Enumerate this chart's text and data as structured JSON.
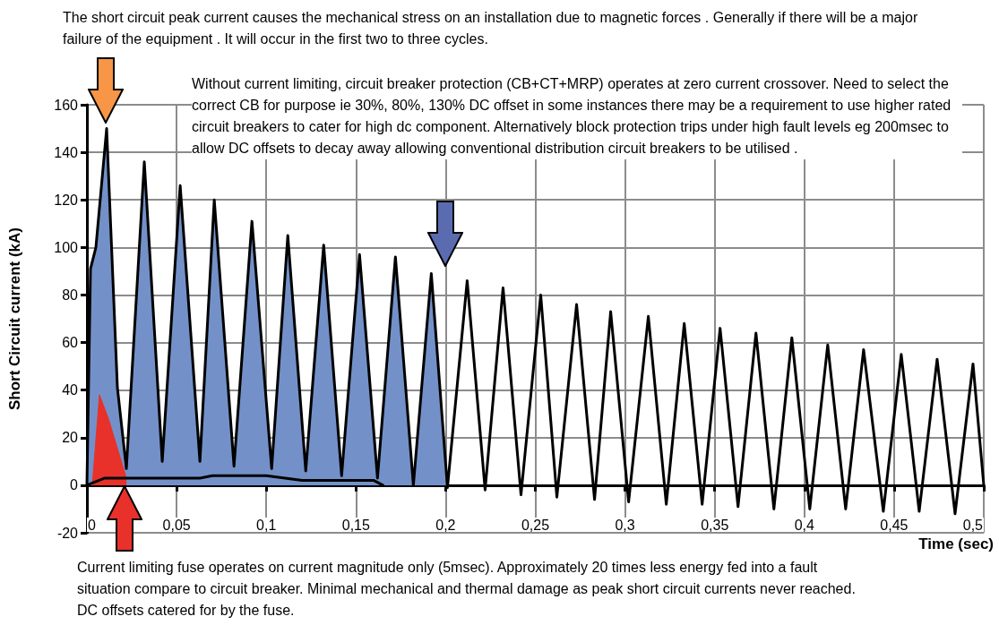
{
  "chart_data": {
    "type": "line",
    "xlabel": "Time (sec)",
    "ylabel": "Short Circuit current (kA)",
    "annotations": [
      "The short circuit peak current causes the mechanical stress on an installation due to magnetic forces . Generally if there will be a major failure of the equipment . It will occur in the first two to three cycles.",
      "Without current limiting, circuit breaker protection (CB+CT+MRP) operates at zero current crossover. Need to select the correct CB for purpose ie 30%, 80%, 130% DC offset in some instances there may be a requirement to use higher rated circuit breakers to cater for high dc component. Alternatively block protection trips under high fault levels eg  200msec to allow DC offsets to decay away allowing conventional distribution circuit breakers to be utilised .",
      "Current limiting fuse operates on current magnitude only  (5msec). Approximately 20 times less energy fed into a fault situation compare to circuit breaker. Minimal mechanical and thermal damage as peak short circuit currents never reached. DC offsets catered for by the fuse."
    ],
    "series": [
      {
        "type": "area",
        "color": "#7391c8",
        "x": [
          0,
          0.002,
          0.005,
          0.011,
          0.017,
          0.022,
          0.032,
          0.042,
          0.052,
          0.063,
          0.071,
          0.082,
          0.092,
          0.103,
          0.112,
          0.122,
          0.132,
          0.142,
          0.152,
          0.162,
          0.172,
          0.182,
          0.192,
          0.2
        ],
        "values": [
          0,
          91,
          100,
          150,
          41,
          7,
          136,
          10,
          126,
          10,
          120,
          8,
          111,
          7,
          105,
          6,
          101,
          4,
          97,
          3,
          96,
          0,
          89,
          0
        ]
      },
      {
        "type": "area",
        "color": "#e8312a",
        "x": [
          0.003,
          0.007,
          0.012,
          0.022
        ],
        "values": [
          0,
          38,
          28,
          3
        ]
      },
      {
        "color": "#000000",
        "x": [
          0,
          0.01,
          0.063,
          0.07,
          0.1,
          0.12,
          0.16,
          0.165
        ],
        "values": [
          0,
          3,
          3,
          4,
          4,
          2,
          2,
          0
        ]
      },
      {
        "color": "#000000",
        "x": [
          0,
          0.002,
          0.005,
          0.011,
          0.017,
          0.022,
          0.032,
          0.042,
          0.052,
          0.063,
          0.071,
          0.082,
          0.092,
          0.103,
          0.112,
          0.122,
          0.132,
          0.142,
          0.152,
          0.162,
          0.172,
          0.182,
          0.192,
          0.201,
          0.212,
          0.222,
          0.232,
          0.242,
          0.253,
          0.262,
          0.273,
          0.283,
          0.292,
          0.302,
          0.313,
          0.323,
          0.333,
          0.343,
          0.353,
          0.363,
          0.373,
          0.383,
          0.393,
          0.403,
          0.413,
          0.423,
          0.433,
          0.444,
          0.454,
          0.464,
          0.474,
          0.484,
          0.494,
          0.5
        ],
        "values": [
          0,
          91,
          100,
          150,
          41,
          7,
          136,
          10,
          126,
          10,
          120,
          8,
          111,
          7,
          105,
          6,
          101,
          4,
          97,
          3,
          96,
          0,
          89,
          -1,
          86,
          -2,
          83,
          -4,
          80,
          -5,
          76,
          -6,
          73,
          -7,
          71,
          -8,
          68,
          -8,
          66,
          -9,
          64,
          -10,
          62,
          -10,
          59,
          -10,
          57,
          -11,
          55,
          -11,
          53,
          -12,
          51,
          0
        ]
      }
    ],
    "xlim": [
      0,
      0.5
    ],
    "xticks": [
      {
        "value": 0,
        "label": "0"
      },
      {
        "value": 0.05,
        "label": "0,05"
      },
      {
        "value": 0.1,
        "label": "0,1"
      },
      {
        "value": 0.15,
        "label": "0,15"
      },
      {
        "value": 0.2,
        "label": "0,2"
      },
      {
        "value": 0.25,
        "label": "0,25"
      },
      {
        "value": 0.3,
        "label": "0,3"
      },
      {
        "value": 0.35,
        "label": "0,35"
      },
      {
        "value": 0.4,
        "label": "0,4"
      },
      {
        "value": 0.45,
        "label": "0,45"
      },
      {
        "value": 0.5,
        "label": "0,5"
      }
    ],
    "ylim": [
      -20,
      160
    ],
    "yticks": [
      -20,
      0,
      20,
      40,
      60,
      80,
      100,
      120,
      140,
      160
    ],
    "grid": true,
    "marker": "none",
    "line_style": "solid"
  }
}
